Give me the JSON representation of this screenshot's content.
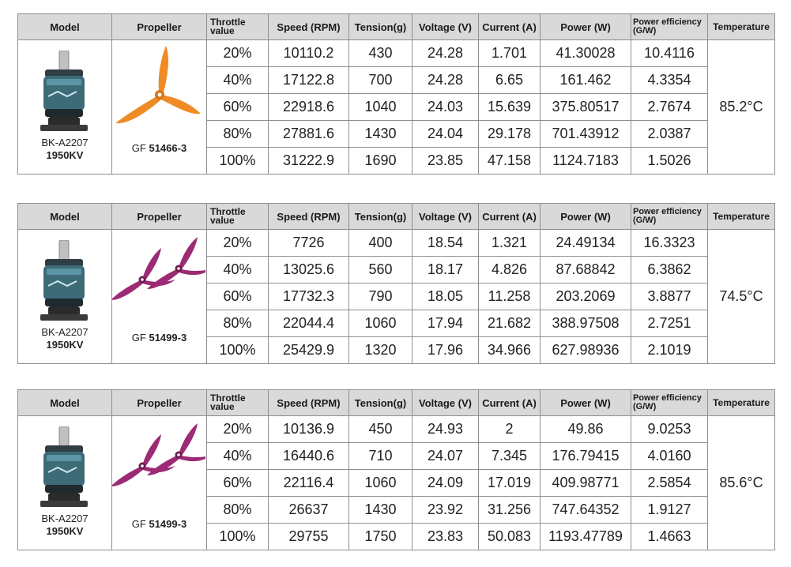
{
  "headers": {
    "model": "Model",
    "propeller": "Propeller",
    "throttle_line1": "Throttle",
    "throttle_line2": "value",
    "speed": "Speed (RPM)",
    "tension": "Tension(g)",
    "voltage": "Voltage (V)",
    "current": "Current (A)",
    "power": "Power (W)",
    "efficiency_line1": "Power efficiency",
    "efficiency_line2": "(G/W)",
    "temperature": "Temperature"
  },
  "colors": {
    "header_bg": "#d9d9d9",
    "border": "#8f8f8f",
    "motor_body": "#3e6b78",
    "prop_orange": "#f08a24",
    "prop_magenta": "#9c2a74"
  },
  "tables": [
    {
      "model_name": "BK-A2207",
      "model_kv": "1950KV",
      "prop_prefix": "GF",
      "prop_code": "51466-3",
      "prop_icon": "tri-blade-propeller-orange-icon",
      "temperature": "85.2°C",
      "rows": [
        {
          "throttle": "20%",
          "speed": "10110.2",
          "tension": "430",
          "voltage": "24.28",
          "current": "1.701",
          "power": "41.30028",
          "efficiency": "10.4116"
        },
        {
          "throttle": "40%",
          "speed": "17122.8",
          "tension": "700",
          "voltage": "24.28",
          "current": "6.65",
          "power": "161.462",
          "efficiency": "4.3354"
        },
        {
          "throttle": "60%",
          "speed": "22918.6",
          "tension": "1040",
          "voltage": "24.03",
          "current": "15.639",
          "power": "375.80517",
          "efficiency": "2.7674"
        },
        {
          "throttle": "80%",
          "speed": "27881.6",
          "tension": "1430",
          "voltage": "24.04",
          "current": "29.178",
          "power": "701.43912",
          "efficiency": "2.0387"
        },
        {
          "throttle": "100%",
          "speed": "31222.9",
          "tension": "1690",
          "voltage": "23.85",
          "current": "47.158",
          "power": "1124.7183",
          "efficiency": "1.5026"
        }
      ]
    },
    {
      "model_name": "BK-A2207",
      "model_kv": "1950KV",
      "prop_prefix": "GF",
      "prop_code": "51499-3",
      "prop_icon": "tri-blade-propeller-magenta-icon",
      "temperature": "74.5°C",
      "rows": [
        {
          "throttle": "20%",
          "speed": "7726",
          "tension": "400",
          "voltage": "18.54",
          "current": "1.321",
          "power": "24.49134",
          "efficiency": "16.3323"
        },
        {
          "throttle": "40%",
          "speed": "13025.6",
          "tension": "560",
          "voltage": "18.17",
          "current": "4.826",
          "power": "87.68842",
          "efficiency": "6.3862"
        },
        {
          "throttle": "60%",
          "speed": "17732.3",
          "tension": "790",
          "voltage": "18.05",
          "current": "11.258",
          "power": "203.2069",
          "efficiency": "3.8877"
        },
        {
          "throttle": "80%",
          "speed": "22044.4",
          "tension": "1060",
          "voltage": "17.94",
          "current": "21.682",
          "power": "388.97508",
          "efficiency": "2.7251"
        },
        {
          "throttle": "100%",
          "speed": "25429.9",
          "tension": "1320",
          "voltage": "17.96",
          "current": "34.966",
          "power": "627.98936",
          "efficiency": "2.1019"
        }
      ]
    },
    {
      "model_name": "BK-A2207",
      "model_kv": "1950KV",
      "prop_prefix": "GF",
      "prop_code": "51499-3",
      "prop_icon": "tri-blade-propeller-magenta-icon",
      "temperature": "85.6°C",
      "rows": [
        {
          "throttle": "20%",
          "speed": "10136.9",
          "tension": "450",
          "voltage": "24.93",
          "current": "2",
          "power": "49.86",
          "efficiency": "9.0253"
        },
        {
          "throttle": "40%",
          "speed": "16440.6",
          "tension": "710",
          "voltage": "24.07",
          "current": "7.345",
          "power": "176.79415",
          "efficiency": "4.0160"
        },
        {
          "throttle": "60%",
          "speed": "22116.4",
          "tension": "1060",
          "voltage": "24.09",
          "current": "17.019",
          "power": "409.98771",
          "efficiency": "2.5854"
        },
        {
          "throttle": "80%",
          "speed": "26637",
          "tension": "1430",
          "voltage": "23.92",
          "current": "31.256",
          "power": "747.64352",
          "efficiency": "1.9127"
        },
        {
          "throttle": "100%",
          "speed": "29755",
          "tension": "1750",
          "voltage": "23.83",
          "current": "50.083",
          "power": "1193.47789",
          "efficiency": "1.4663"
        }
      ]
    }
  ]
}
